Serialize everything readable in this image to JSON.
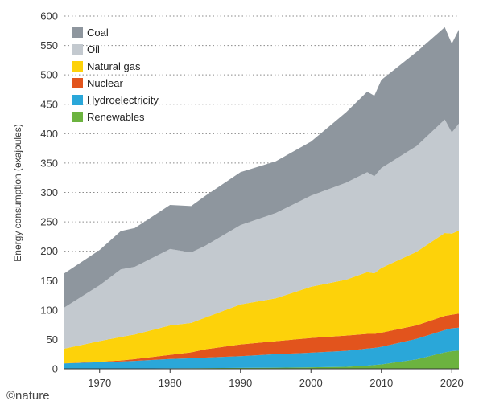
{
  "credit": "©nature",
  "chart_data": {
    "type": "area",
    "stacked": true,
    "title": "",
    "xlabel": "",
    "ylabel": "Energy consumption (exajoules)",
    "xlim": [
      1965,
      2021
    ],
    "ylim": [
      0,
      600
    ],
    "yticks": [
      "0",
      "50",
      "100",
      "150",
      "200",
      "250",
      "300",
      "350",
      "400",
      "450",
      "500",
      "550",
      "600"
    ],
    "xticks": [
      "1970",
      "1980",
      "1990",
      "2000",
      "2010",
      "2020"
    ],
    "grid": true,
    "legend": "top-left",
    "x": [
      1965,
      1970,
      1973,
      1975,
      1980,
      1983,
      1985,
      1990,
      1995,
      2000,
      2005,
      2008,
      2009,
      2010,
      2015,
      2019,
      2020,
      2021
    ],
    "series": [
      {
        "name": "Renewables",
        "color": "#6cb33f",
        "values": [
          0.2,
          0.3,
          0.4,
          0.5,
          0.8,
          1,
          1.2,
          1.5,
          1.9,
          2.5,
          3.5,
          5.5,
          6.5,
          7.5,
          16,
          28,
          30,
          31
        ]
      },
      {
        "name": "Hydroelectricity",
        "color": "#2aa7d9",
        "values": [
          9,
          11,
          12,
          13,
          16,
          17,
          18,
          20,
          23,
          25,
          27,
          29,
          29,
          30,
          35,
          38,
          39,
          39
        ]
      },
      {
        "name": "Nuclear",
        "color": "#e2541d",
        "values": [
          0.2,
          0.8,
          1.8,
          3,
          7,
          10,
          14,
          20,
          22,
          25,
          26,
          25,
          24,
          24,
          23,
          24,
          23,
          24
        ]
      },
      {
        "name": "Natural gas",
        "color": "#fdd20a",
        "values": [
          25,
          35,
          40,
          42,
          50,
          50,
          54,
          68,
          73,
          87,
          95,
          105,
          103,
          110,
          125,
          141,
          138,
          141
        ]
      },
      {
        "name": "Oil",
        "color": "#c3c9cf",
        "values": [
          70,
          95,
          115,
          115,
          130,
          120,
          122,
          135,
          145,
          155,
          165,
          170,
          165,
          170,
          180,
          193,
          172,
          182
        ]
      },
      {
        "name": "Coal",
        "color": "#8e969e",
        "values": [
          58,
          60,
          65,
          66,
          75,
          79,
          85,
          90,
          88,
          92,
          120,
          137,
          137,
          150,
          160,
          157,
          151,
          160
        ]
      }
    ],
    "legend_order": [
      "Coal",
      "Oil",
      "Natural gas",
      "Nuclear",
      "Hydroelectricity",
      "Renewables"
    ]
  }
}
